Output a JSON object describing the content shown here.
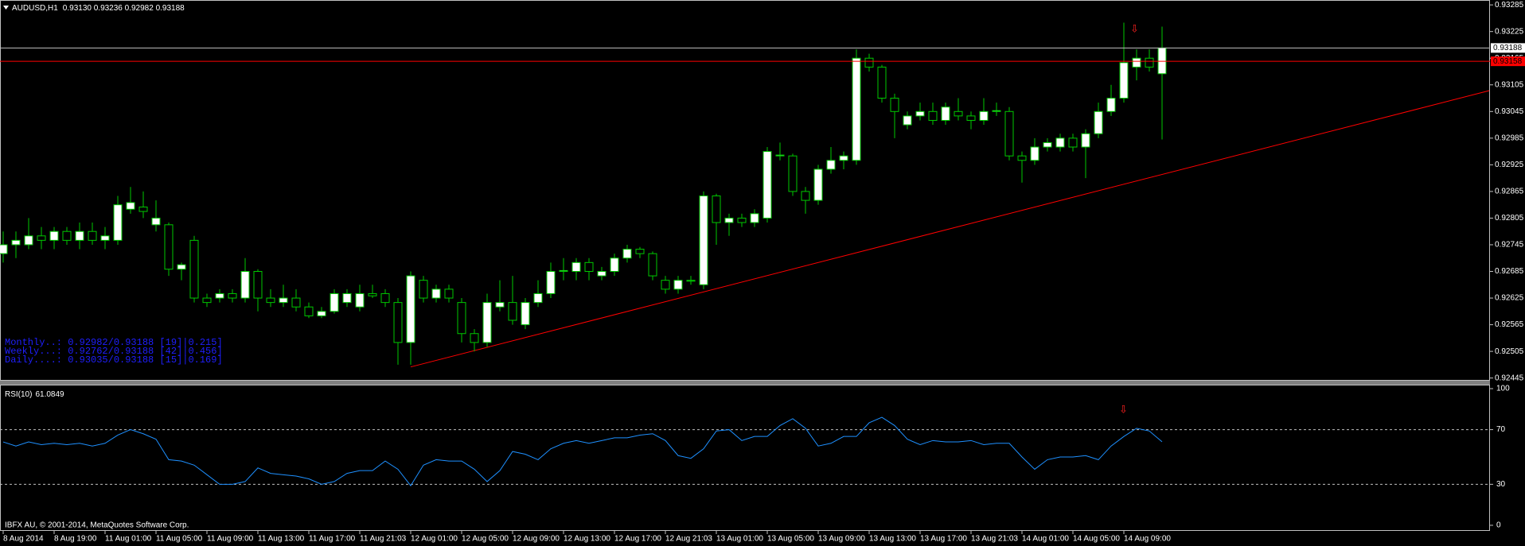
{
  "chart_data": [
    {
      "type": "candlestick",
      "title": "AUDUSD,H1",
      "quote": "0.93130 0.93236 0.92982 0.93188",
      "up_color": "#ffffff",
      "down_color": "#000000",
      "wick_color": "#00c800",
      "categories": [
        "8 Aug 2014",
        null,
        null,
        null,
        "8 Aug 19:00",
        null,
        null,
        null,
        "11 Aug 01:00",
        null,
        null,
        null,
        "11 Aug 05:00",
        null,
        null,
        null,
        "11 Aug 09:00",
        null,
        null,
        null,
        "11 Aug 13:00",
        null,
        null,
        null,
        "11 Aug 17:00",
        null,
        null,
        null,
        "11 Aug 21:03",
        null,
        null,
        null,
        "12 Aug 01:00",
        null,
        null,
        null,
        "12 Aug 05:00",
        null,
        null,
        null,
        "12 Aug 09:00",
        null,
        null,
        null,
        "12 Aug 13:00",
        null,
        null,
        null,
        "12 Aug 17:00",
        null,
        null,
        null,
        "12 Aug 21:03",
        null,
        null,
        null,
        "13 Aug 01:00",
        null,
        null,
        null,
        "13 Aug 05:00",
        null,
        null,
        null,
        "13 Aug 09:00",
        null,
        null,
        null,
        "13 Aug 13:00",
        null,
        null,
        null,
        "13 Aug 17:00",
        null,
        null,
        null,
        "13 Aug 21:03",
        null,
        null,
        null,
        "14 Aug 01:00",
        null,
        null,
        null,
        "14 Aug 05:00",
        null,
        null,
        null,
        "14 Aug 09:00",
        null,
        null,
        null
      ],
      "open": [
        0.92725,
        0.92745,
        0.92745,
        0.92765,
        0.92755,
        0.92775,
        0.92755,
        0.92775,
        0.92755,
        0.92755,
        0.92825,
        0.9283,
        0.9279,
        0.9279,
        0.9269,
        0.92755,
        0.92625,
        0.92625,
        0.92635,
        0.92625,
        0.92685,
        0.92625,
        0.92615,
        0.92625,
        0.92605,
        0.92585,
        0.92595,
        0.92615,
        0.92605,
        0.92635,
        0.92635,
        0.92615,
        0.92525,
        0.92665,
        0.92625,
        0.92645,
        0.92615,
        0.92545,
        0.92525,
        0.92605,
        0.92615,
        0.92565,
        0.92615,
        0.92635,
        0.92685,
        0.92685,
        0.92705,
        0.92675,
        0.92685,
        0.92715,
        0.92735,
        0.92725,
        0.92665,
        0.92645,
        0.92665,
        0.92655,
        0.92855,
        0.92795,
        0.92805,
        0.92795,
        0.92805,
        0.92945,
        0.92945,
        0.92865,
        0.92845,
        0.92915,
        0.92935,
        0.92935,
        0.93165,
        0.93145,
        0.93075,
        0.93015,
        0.93035,
        0.93045,
        0.93025,
        0.93045,
        0.93035,
        0.93025,
        0.93045,
        0.93045,
        0.92945,
        0.92935,
        0.92965,
        0.92965,
        0.92985,
        0.92965,
        0.92995,
        0.93045,
        0.93075,
        0.93145,
        0.93165,
        0.9313
      ],
      "high": [
        0.92775,
        0.92775,
        0.92805,
        0.92785,
        0.92785,
        0.92785,
        0.92795,
        0.92795,
        0.92785,
        0.92855,
        0.92875,
        0.92865,
        0.92845,
        0.92795,
        0.92705,
        0.92765,
        0.92635,
        0.92645,
        0.92645,
        0.92715,
        0.9269,
        0.92645,
        0.92655,
        0.92645,
        0.92615,
        0.92605,
        0.92645,
        0.92645,
        0.92655,
        0.92655,
        0.92645,
        0.92625,
        0.92685,
        0.92675,
        0.92655,
        0.92655,
        0.92625,
        0.92555,
        0.92635,
        0.92665,
        0.92675,
        0.92625,
        0.92665,
        0.92705,
        0.92715,
        0.92715,
        0.92715,
        0.92695,
        0.92725,
        0.92745,
        0.9274,
        0.9273,
        0.92675,
        0.92675,
        0.92675,
        0.92865,
        0.9286,
        0.92815,
        0.92815,
        0.92825,
        0.92965,
        0.92975,
        0.9295,
        0.92875,
        0.92925,
        0.92965,
        0.92955,
        0.93185,
        0.93175,
        0.9315,
        0.93085,
        0.93045,
        0.93065,
        0.93065,
        0.93065,
        0.93075,
        0.93045,
        0.93075,
        0.93065,
        0.93055,
        0.92955,
        0.92985,
        0.92985,
        0.92995,
        0.92995,
        0.93005,
        0.93065,
        0.93105,
        0.93245,
        0.93185,
        0.93185,
        0.93236
      ],
      "low": [
        0.92705,
        0.92715,
        0.92735,
        0.92735,
        0.92735,
        0.92745,
        0.92735,
        0.92745,
        0.92735,
        0.92745,
        0.92815,
        0.92805,
        0.92775,
        0.92675,
        0.92665,
        0.92615,
        0.92605,
        0.92615,
        0.92615,
        0.92615,
        0.92595,
        0.92605,
        0.92605,
        0.92595,
        0.9258,
        0.9258,
        0.9259,
        0.92605,
        0.92595,
        0.92625,
        0.92605,
        0.92475,
        0.92475,
        0.92615,
        0.92615,
        0.92615,
        0.92525,
        0.92505,
        0.92515,
        0.92595,
        0.92565,
        0.92555,
        0.92605,
        0.92625,
        0.92665,
        0.92665,
        0.92665,
        0.92665,
        0.92675,
        0.92705,
        0.92715,
        0.92665,
        0.92635,
        0.92635,
        0.92655,
        0.92645,
        0.92745,
        0.92765,
        0.92785,
        0.92785,
        0.92795,
        0.92935,
        0.92855,
        0.92815,
        0.92835,
        0.92905,
        0.92915,
        0.92925,
        0.93135,
        0.93065,
        0.92985,
        0.93005,
        0.93025,
        0.93015,
        0.93015,
        0.93025,
        0.93005,
        0.93015,
        0.93035,
        0.92935,
        0.92885,
        0.92925,
        0.92955,
        0.92955,
        0.92955,
        0.92895,
        0.92985,
        0.93035,
        0.93065,
        0.93115,
        0.93135,
        0.92982
      ],
      "close": [
        0.92745,
        0.92755,
        0.92765,
        0.92755,
        0.92775,
        0.92755,
        0.92775,
        0.92755,
        0.92765,
        0.92835,
        0.9284,
        0.9282,
        0.92805,
        0.9269,
        0.927,
        0.92625,
        0.92615,
        0.92635,
        0.92625,
        0.92685,
        0.92625,
        0.92615,
        0.92625,
        0.92605,
        0.92585,
        0.92595,
        0.92635,
        0.92635,
        0.92635,
        0.9263,
        0.92615,
        0.92525,
        0.92675,
        0.92625,
        0.92645,
        0.92625,
        0.92545,
        0.92525,
        0.92615,
        0.92615,
        0.92575,
        0.92615,
        0.92635,
        0.92685,
        0.92687,
        0.92705,
        0.92685,
        0.92685,
        0.92715,
        0.92735,
        0.92725,
        0.92675,
        0.92645,
        0.92665,
        0.92663,
        0.92855,
        0.92795,
        0.92805,
        0.92795,
        0.92815,
        0.92955,
        0.92947,
        0.92865,
        0.92845,
        0.92915,
        0.92935,
        0.92945,
        0.93165,
        0.93145,
        0.93075,
        0.93045,
        0.93035,
        0.93045,
        0.93025,
        0.93055,
        0.93035,
        0.93025,
        0.93045,
        0.93047,
        0.92945,
        0.92935,
        0.92965,
        0.92975,
        0.92985,
        0.92965,
        0.92995,
        0.93045,
        0.93075,
        0.93155,
        0.93165,
        0.93145,
        0.93188
      ],
      "ylim": [
        0.92439,
        0.93296
      ],
      "yticks": [
        0.93285,
        0.93225,
        0.93165,
        0.93105,
        0.93045,
        0.92985,
        0.92925,
        0.92865,
        0.92805,
        0.92745,
        0.92685,
        0.92625,
        0.92565,
        0.92505,
        0.92445
      ],
      "hlines": [
        {
          "value": 0.93188,
          "color": "#c0c0c0",
          "label_color": "#000000",
          "box_color": "#ffffff"
        },
        {
          "value": 0.93158,
          "color": "#ff0000",
          "label_color": "#000000",
          "box_color": "#ff0000"
        }
      ],
      "trendline": {
        "x": [
          32,
          116.7
        ],
        "y": [
          0.9247,
          0.93092
        ],
        "color": "#ff0000"
      },
      "annotations": [
        "Monthly..: 0.92982/0.93188 [19]|0.215]",
        "Weekly...: 0.92762/0.93188 [42]|0.456]",
        "Daily....: 0.93035/0.93188 [15]|0.169]"
      ],
      "annotation_color": "#1f1fff"
    },
    {
      "type": "line",
      "title": "RSI(10)",
      "color": "#1e90ff",
      "values": [
        61,
        58,
        61,
        59,
        60,
        59,
        60,
        58,
        60,
        66,
        70,
        67,
        63,
        48,
        47,
        44,
        37,
        30,
        30,
        32,
        42,
        38,
        37,
        36,
        34,
        30,
        32,
        38,
        40,
        40,
        47,
        41,
        29,
        44,
        48,
        47,
        47,
        41,
        32,
        40,
        54,
        52,
        48,
        56,
        60,
        62,
        60,
        62,
        64,
        64,
        66,
        67,
        62,
        51,
        49,
        56,
        69,
        70,
        62,
        65,
        65,
        73,
        78,
        71,
        58,
        60,
        65,
        65,
        75,
        79,
        73,
        63,
        59,
        62,
        61,
        61,
        62,
        59,
        60,
        60,
        50,
        41,
        48,
        50,
        50,
        51,
        48,
        58,
        65,
        71,
        69,
        61.0849
      ],
      "ylim": [
        -4.1,
        102.9
      ],
      "yticks": [
        100,
        70,
        30,
        0
      ],
      "levels": [
        70,
        30
      ],
      "footer": "IBFX AU, © 2001-2014, MetaQuotes Software Corp."
    }
  ]
}
